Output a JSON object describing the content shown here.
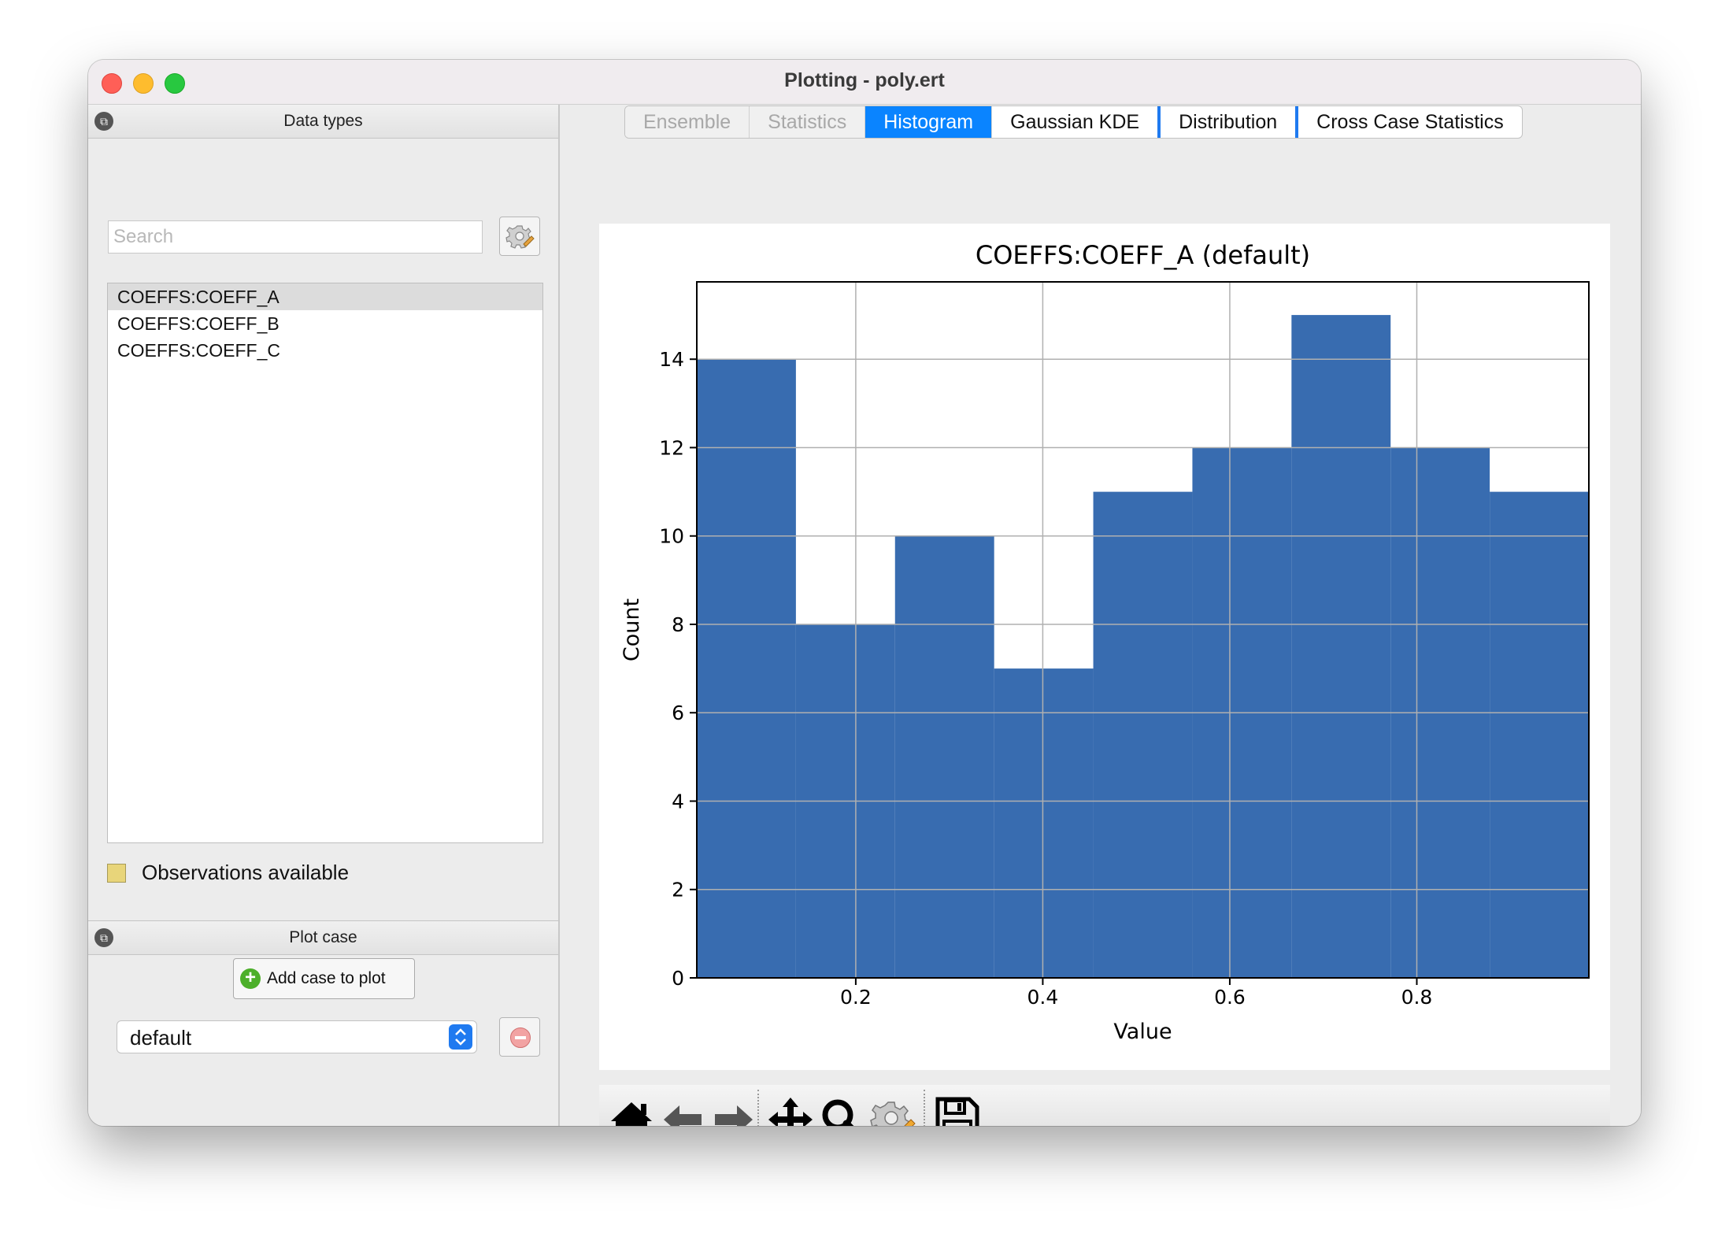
{
  "window": {
    "title": "Plotting - poly.ert"
  },
  "data_types": {
    "header": "Data types",
    "search_placeholder": "Search",
    "items": [
      "COEFFS:COEFF_A",
      "COEFFS:COEFF_B",
      "COEFFS:COEFF_C"
    ],
    "selected_index": 0,
    "observations_label": "Observations available",
    "observations_color": "#e8d57a"
  },
  "plot_case": {
    "header": "Plot case",
    "add_button_label": "Add case to plot",
    "selected_case": "default"
  },
  "tabs": [
    {
      "label": "Ensemble",
      "state": "disabled"
    },
    {
      "label": "Statistics",
      "state": "disabled"
    },
    {
      "label": "Histogram",
      "state": "active"
    },
    {
      "label": "Gaussian KDE",
      "state": "normal"
    },
    {
      "label": "Distribution",
      "state": "normal"
    },
    {
      "label": "Cross Case Statistics",
      "state": "normal"
    }
  ],
  "toolbar": {
    "icons": [
      "home-icon",
      "back-arrow-icon",
      "forward-arrow-icon",
      "pan-icon",
      "zoom-icon",
      "configure-subplots-icon",
      "save-icon"
    ]
  },
  "chart_data": {
    "type": "bar",
    "title": "COEFFS:COEFF_A (default)",
    "xlabel": "Value",
    "ylabel": "Count",
    "bin_edges": [
      0.03,
      0.136,
      0.242,
      0.348,
      0.454,
      0.56,
      0.666,
      0.772,
      0.878,
      0.984
    ],
    "values": [
      14,
      8,
      10,
      7,
      11,
      12,
      15,
      12,
      11
    ],
    "xlim": [
      0.03,
      0.984
    ],
    "ylim": [
      0,
      15.75
    ],
    "xticks": [
      0.2,
      0.4,
      0.6,
      0.8
    ],
    "xtick_labels": [
      "0.2",
      "0.4",
      "0.6",
      "0.8"
    ],
    "yticks": [
      0,
      2,
      4,
      6,
      8,
      10,
      12,
      14
    ],
    "ytick_labels": [
      "0",
      "2",
      "4",
      "6",
      "8",
      "10",
      "12",
      "14"
    ],
    "grid": true,
    "bar_color": "#386cb0"
  }
}
